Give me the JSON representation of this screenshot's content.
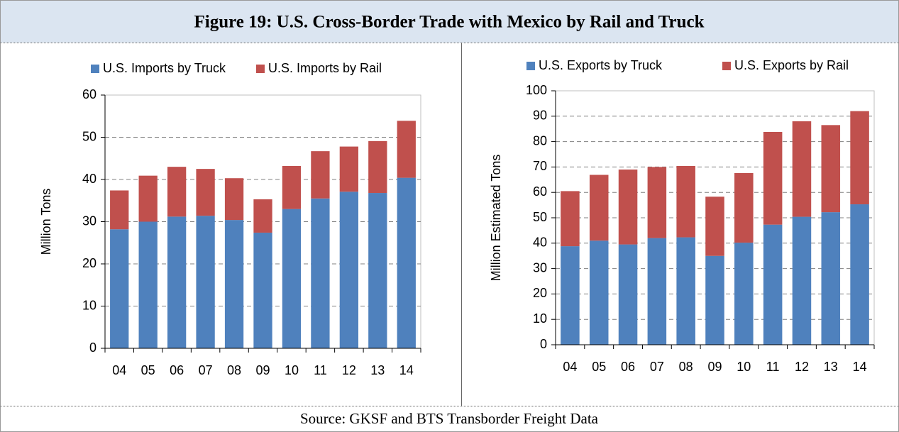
{
  "title": "Figure 19: U.S. Cross-Border Trade with Mexico by Rail and Truck",
  "source": "Source: GKSF and BTS Transborder Freight Data",
  "chart_data": [
    {
      "type": "stacked_bar",
      "y_label": "Million Tons",
      "categories": [
        "04",
        "05",
        "06",
        "07",
        "08",
        "09",
        "10",
        "11",
        "12",
        "13",
        "14"
      ],
      "series": [
        {
          "name": "U.S. Imports by Truck",
          "color": "#4f81bd",
          "values": [
            28.2,
            30,
            31.2,
            31.4,
            30.4,
            27.4,
            33,
            35.5,
            37.1,
            36.8,
            40.4
          ]
        },
        {
          "name": "U.S. Imports by Rail",
          "color": "#c0504d",
          "values": [
            9.2,
            10.9,
            11.8,
            11.1,
            9.9,
            7.9,
            10.2,
            11.2,
            10.7,
            12.3,
            13.5
          ]
        }
      ],
      "ylim": [
        0,
        60
      ],
      "yticks": [
        0,
        10,
        20,
        30,
        40,
        50,
        60
      ],
      "grid": true
    },
    {
      "type": "stacked_bar",
      "y_label": "Million Estimated Tons",
      "categories": [
        "04",
        "05",
        "06",
        "07",
        "08",
        "09",
        "10",
        "11",
        "12",
        "13",
        "14"
      ],
      "series": [
        {
          "name": "U.S. Exports by Truck",
          "color": "#4f81bd",
          "values": [
            38.8,
            41,
            39.5,
            42,
            42.3,
            35,
            40.2,
            47.3,
            50.4,
            52.2,
            55.3
          ]
        },
        {
          "name": "U.S. Exports by Rail",
          "color": "#c0504d",
          "values": [
            21.7,
            25.9,
            29.5,
            28,
            28.1,
            23.3,
            27.4,
            36.5,
            37.6,
            34.3,
            36.7
          ]
        }
      ],
      "ylim": [
        0,
        100
      ],
      "yticks": [
        0,
        10,
        20,
        30,
        40,
        50,
        60,
        70,
        80,
        90,
        100
      ],
      "grid": true
    }
  ]
}
